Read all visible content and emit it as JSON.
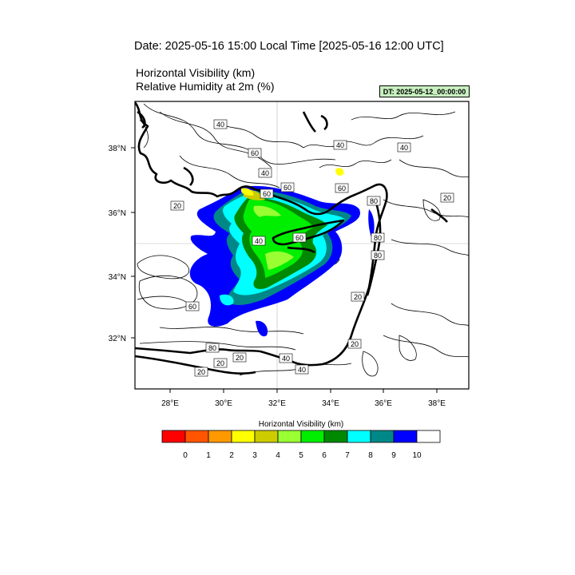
{
  "header": {
    "date_title": "Date: 2025-05-16  15:00 Local Time [2025-05-16  12:00 UTC]",
    "line1": "Horizontal Visibility   (km)",
    "line2": "Relative Humidity at 2m   (%)",
    "dt_badge": "DT: 2025-05-12_00:00:00"
  },
  "map": {
    "lon_ticks": [
      "28°E",
      "30°E",
      "32°E",
      "34°E",
      "36°E",
      "38°E"
    ],
    "lat_ticks": [
      "38°N",
      "36°N",
      "34°N",
      "32°N"
    ],
    "contour_labels": [
      "40",
      "40",
      "40",
      "60",
      "40",
      "60",
      "20",
      "60",
      "20",
      "80",
      "60",
      "60",
      "40",
      "80",
      "80",
      "20",
      "20",
      "60",
      "80",
      "20",
      "20",
      "40",
      "20",
      "40"
    ]
  },
  "legend": {
    "title": "Horizontal Visibility  (km)",
    "colors": [
      "#ff0000",
      "#ff5500",
      "#ff9900",
      "#ffff00",
      "#cccc00",
      "#99ff33",
      "#00ee00",
      "#008800",
      "#00ffff",
      "#008888",
      "#0000ff",
      "#ffffff"
    ],
    "labels": [
      "0",
      "1",
      "2",
      "3",
      "4",
      "5",
      "6",
      "7",
      "8",
      "9",
      "10"
    ]
  }
}
